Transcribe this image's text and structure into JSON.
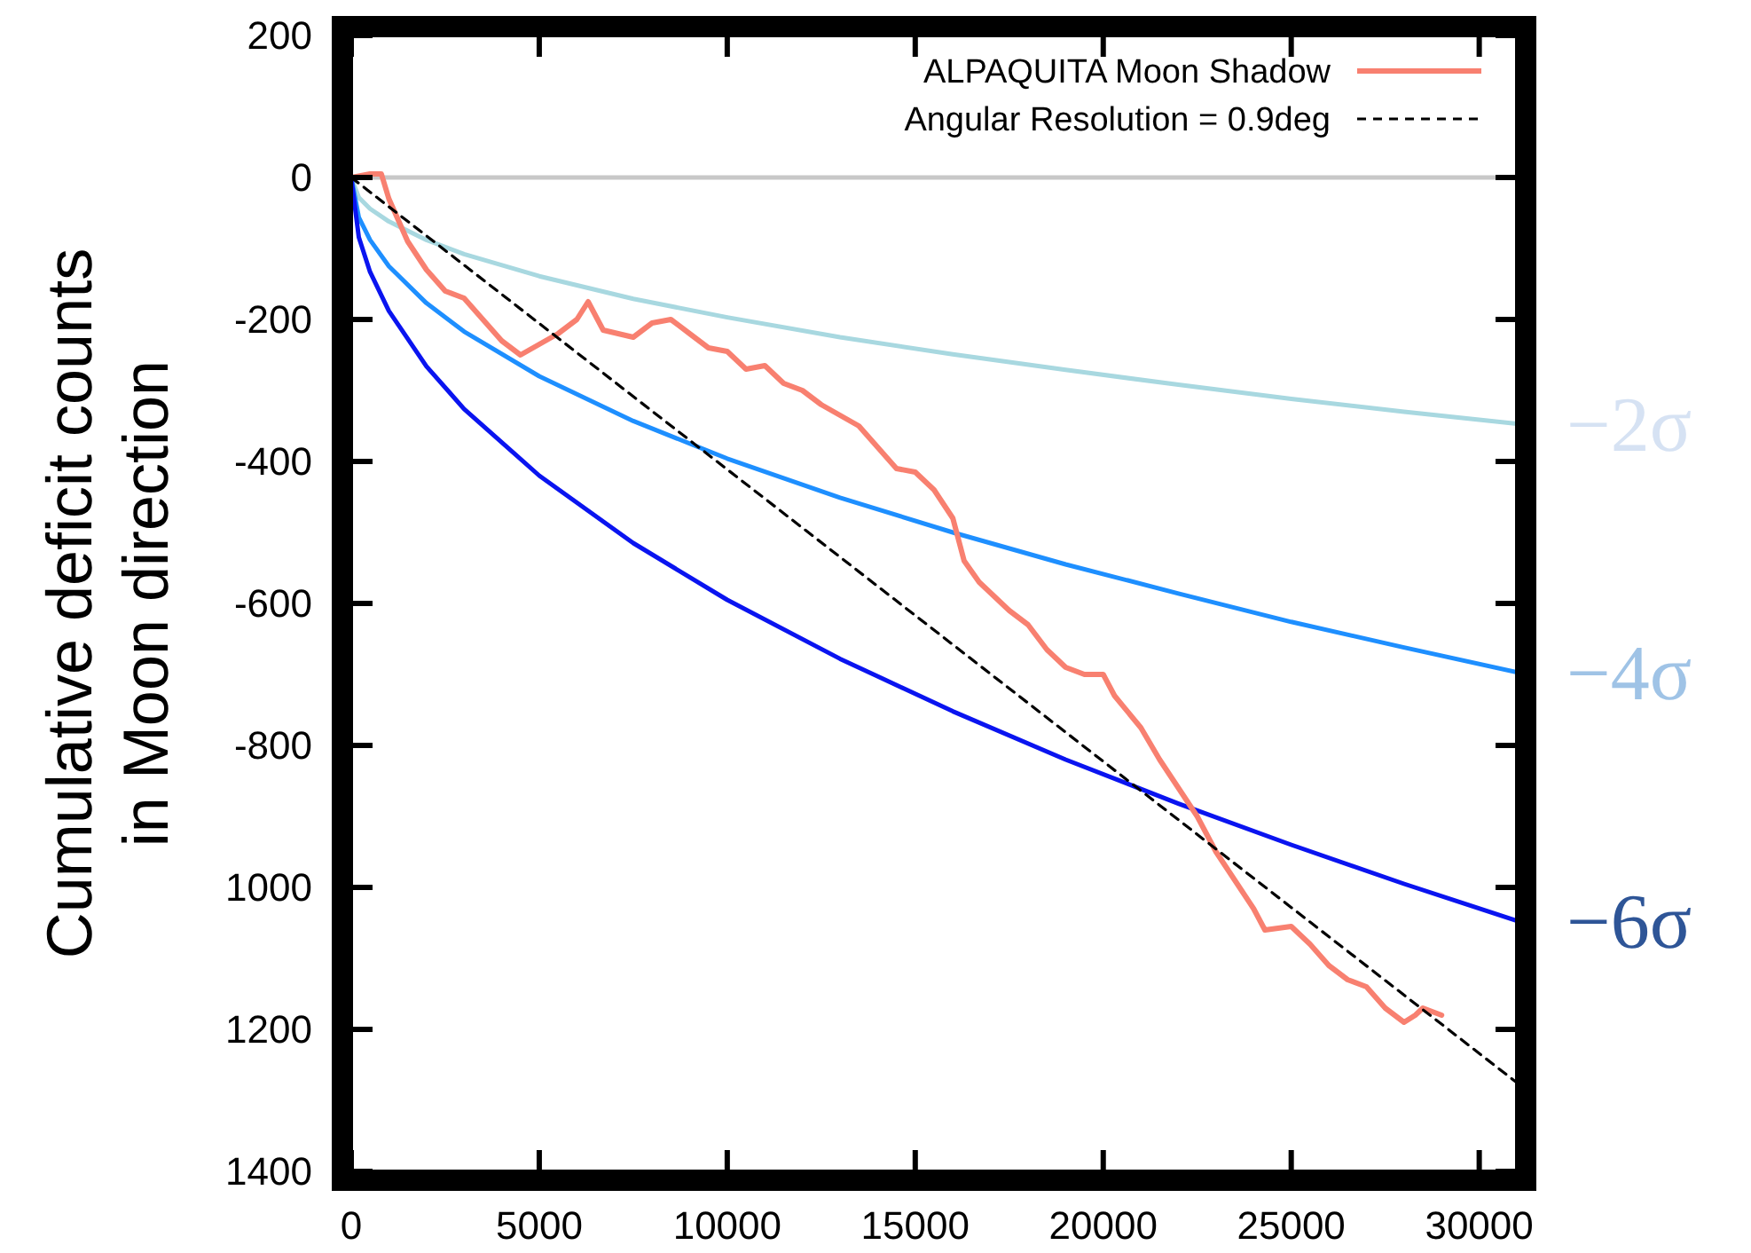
{
  "chart_data": {
    "type": "line",
    "ylabel": "Cumulative deficit counts\nin Moon direction",
    "xlim": [
      0,
      31000
    ],
    "ylim": [
      -1400,
      200
    ],
    "xticks": [
      0,
      5000,
      10000,
      15000,
      20000,
      25000,
      30000
    ],
    "yticks": [
      200,
      0,
      -200,
      -400,
      -600,
      -800,
      {
        "value": -1000,
        "label": "1000"
      },
      {
        "value": -1200,
        "label": "1200"
      },
      {
        "value": -1400,
        "label": "1400"
      }
    ],
    "grid": false,
    "legend": "top right",
    "ref_lines": [
      {
        "axis": "y",
        "value": 0,
        "color": "#c8c8c8"
      }
    ],
    "annotations": [
      "−2σ",
      "−4σ",
      "−6σ"
    ],
    "series": [
      {
        "color": "#a8d8e0",
        "x": [
          0,
          200,
          500,
          1000,
          2000,
          3000,
          5000,
          7500,
          10000,
          13000,
          16000,
          19000,
          22000,
          25000,
          28000,
          31000
        ],
        "values": [
          0,
          -28,
          -44,
          -62,
          -88,
          -108,
          -139,
          -171,
          -197,
          -225,
          -249,
          -271,
          -292,
          -312,
          -330,
          -347
        ]
      },
      {
        "color": "#1e8fff",
        "x": [
          0,
          200,
          500,
          1000,
          2000,
          3000,
          5000,
          7500,
          10000,
          13000,
          16000,
          19000,
          22000,
          25000,
          28000,
          31000
        ],
        "values": [
          0,
          -56,
          -88,
          -125,
          -177,
          -217,
          -280,
          -343,
          -396,
          -451,
          -500,
          -545,
          -586,
          -626,
          -662,
          -697
        ]
      },
      {
        "color": "#0a14f0",
        "x": [
          0,
          200,
          500,
          1000,
          2000,
          3000,
          5000,
          7500,
          10000,
          13000,
          16000,
          19000,
          22000,
          25000,
          28000,
          31000
        ],
        "values": [
          0,
          -84,
          -133,
          -188,
          -266,
          -326,
          -420,
          -515,
          -595,
          -678,
          -752,
          -820,
          -882,
          -940,
          -995,
          -1047
        ]
      },
      {
        "name": "ALPAQUITA Moon Shadow",
        "color": "#f88070",
        "line_style": "solid",
        "x": [
          0,
          500,
          800,
          1000,
          1500,
          2000,
          2500,
          3000,
          3500,
          4000,
          4500,
          5000,
          5500,
          6000,
          6300,
          6700,
          7500,
          8000,
          8500,
          9000,
          9500,
          10000,
          10500,
          11000,
          11500,
          12000,
          12500,
          13000,
          13500,
          14000,
          14500,
          15000,
          15500,
          16000,
          16300,
          16700,
          17500,
          18000,
          18500,
          19000,
          19500,
          20000,
          20300,
          21000,
          21500,
          22000,
          22500,
          23000,
          23500,
          24000,
          24300,
          25000,
          25500,
          26000,
          26500,
          27000,
          27500,
          28000,
          28300,
          28500,
          29000
        ],
        "values": [
          0,
          5,
          5,
          -30,
          -90,
          -130,
          -160,
          -170,
          -200,
          -230,
          -250,
          -235,
          -220,
          -200,
          -175,
          -215,
          -225,
          -205,
          -200,
          -220,
          -240,
          -245,
          -270,
          -265,
          -290,
          -300,
          -320,
          -335,
          -350,
          -380,
          -410,
          -415,
          -440,
          -480,
          -540,
          -570,
          -610,
          -630,
          -665,
          -690,
          -700,
          -700,
          -730,
          -775,
          -820,
          -860,
          -900,
          -950,
          -990,
          -1030,
          -1060,
          -1055,
          -1080,
          -1110,
          -1130,
          -1140,
          -1170,
          -1190,
          -1180,
          -1170,
          -1180
        ]
      },
      {
        "name": "Angular Resolution = 0.9deg",
        "color": "#000000",
        "line_style": "dashed",
        "x": [
          0,
          31000
        ],
        "values": [
          0,
          -1275
        ]
      }
    ]
  }
}
